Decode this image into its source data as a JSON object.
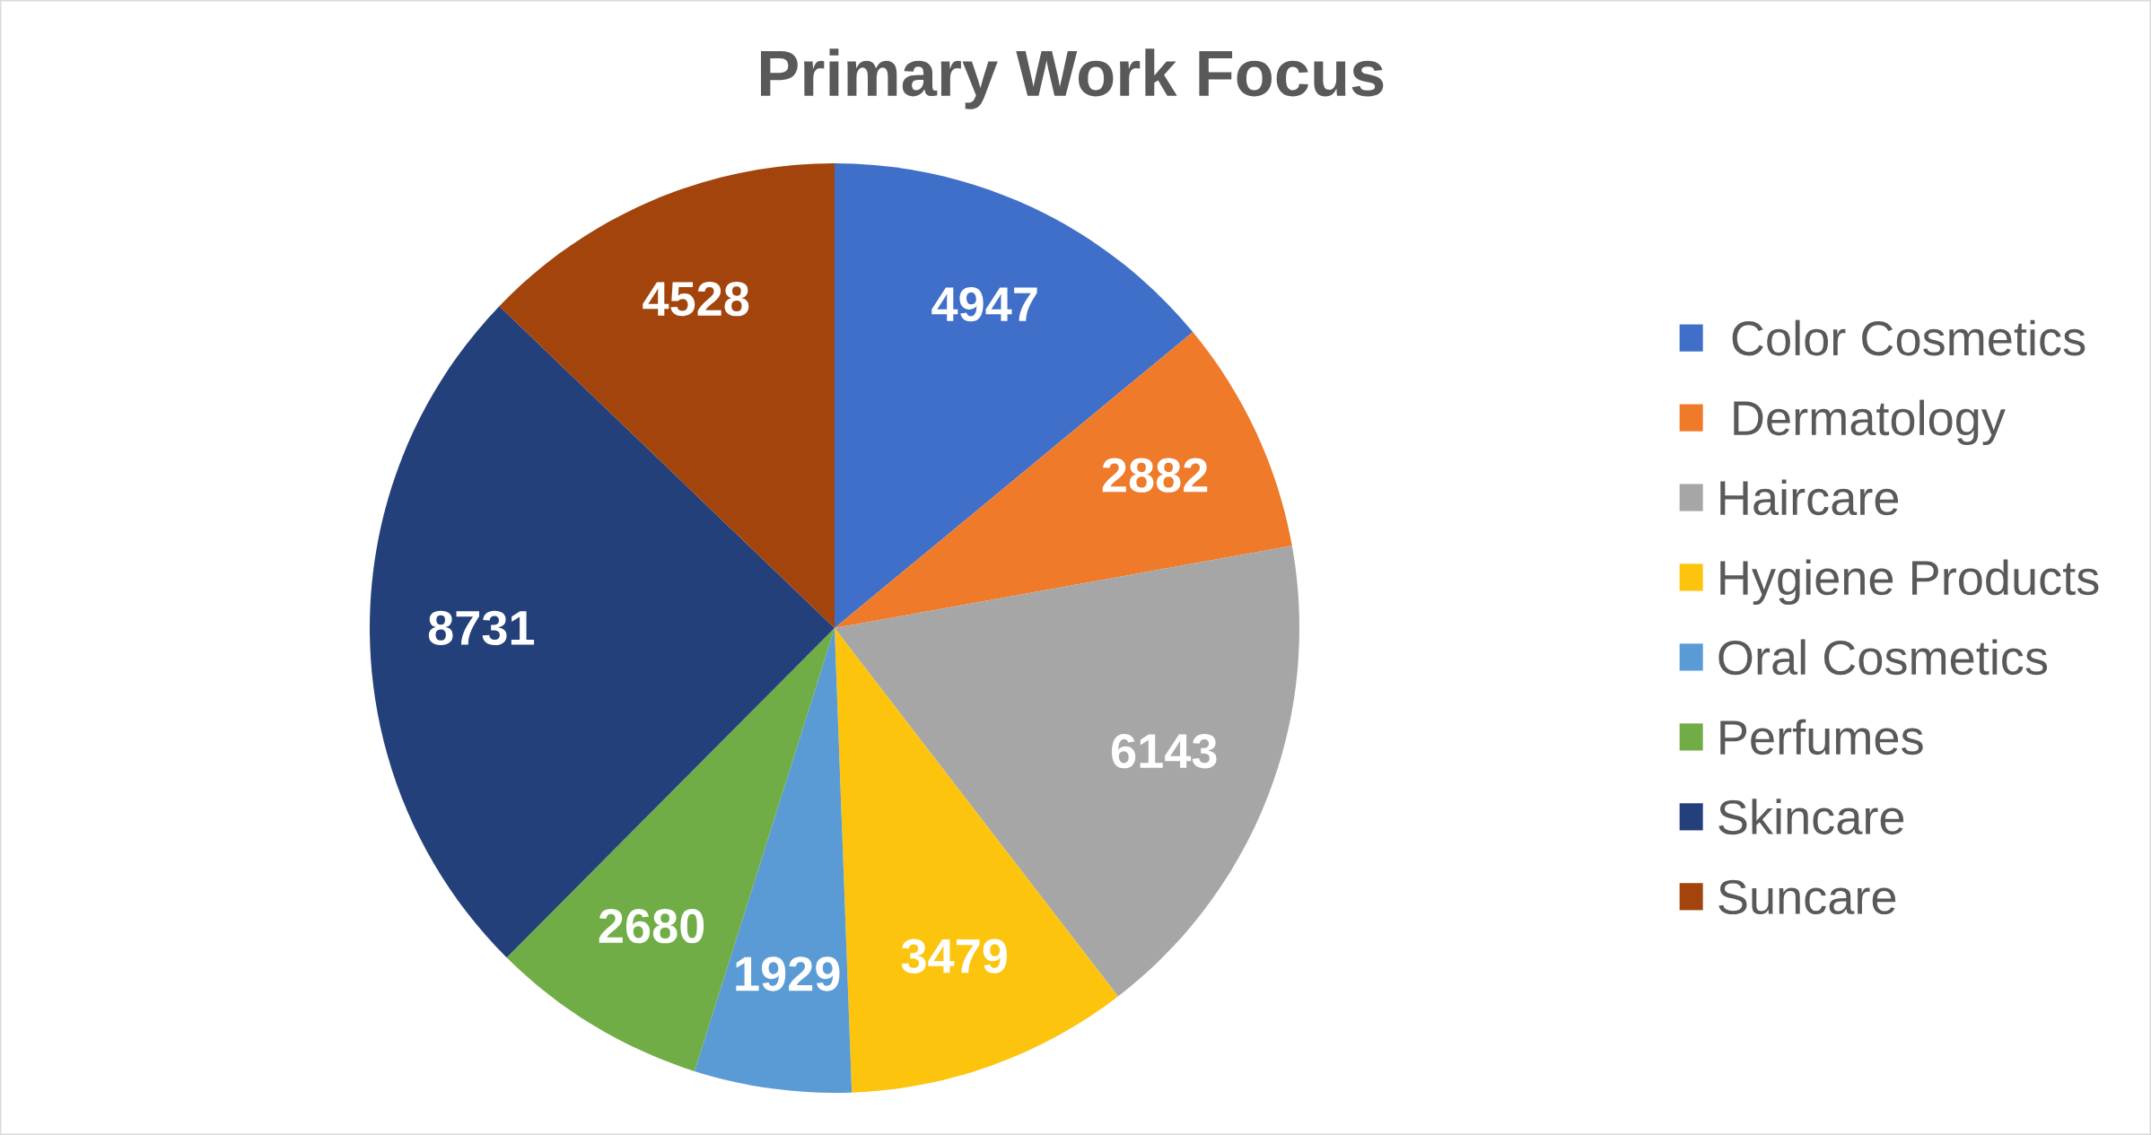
{
  "chart_data": {
    "type": "pie",
    "title": "Primary Work Focus",
    "categories": [
      " Color Cosmetics",
      " Dermatology",
      "Haircare",
      "Hygiene Products",
      "Oral Cosmetics",
      "Perfumes",
      "Skincare",
      "Suncare"
    ],
    "values": [
      4947,
      2882,
      6143,
      3479,
      1929,
      2680,
      8731,
      4528
    ],
    "colors": [
      "#3f6fc8",
      "#ef7a2a",
      "#a6a6a6",
      "#fcc40c",
      "#5b9bd5",
      "#70ad47",
      "#23407a",
      "#a2440c"
    ],
    "data_labels": true,
    "legend": "right"
  }
}
